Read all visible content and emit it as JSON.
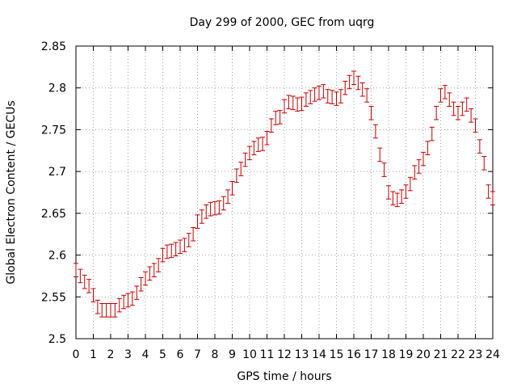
{
  "chart_data": {
    "type": "scatter",
    "title": "Day 299 of 2000, GEC from uqrg",
    "xlabel": "GPS time / hours",
    "ylabel": "Global Electron Content / GECUs",
    "xlim": [
      0,
      24
    ],
    "ylim": [
      2.5,
      2.85
    ],
    "xticks": [
      "0",
      "1",
      "2",
      "3",
      "4",
      "5",
      "6",
      "7",
      "8",
      "9",
      "10",
      "11",
      "12",
      "13",
      "14",
      "15",
      "16",
      "17",
      "18",
      "19",
      "20",
      "21",
      "22",
      "23",
      "24"
    ],
    "yticks": [
      "2.5",
      "2.55",
      "2.6",
      "2.65",
      "2.7",
      "2.75",
      "2.8",
      "2.85"
    ],
    "grid": true,
    "color": "#c00000",
    "error": 0.008,
    "series": [
      {
        "x": [
          0.0,
          0.25,
          0.5,
          0.75,
          1.0,
          1.25,
          1.5,
          1.75,
          2.0,
          2.25,
          2.5,
          2.75,
          3.0,
          3.25,
          3.5,
          3.75,
          4.0,
          4.25,
          4.5,
          4.75,
          5.0,
          5.25,
          5.5,
          5.75,
          6.0,
          6.25,
          6.5,
          6.75,
          7.0,
          7.25,
          7.5,
          7.75,
          8.0,
          8.25,
          8.5,
          8.75,
          9.0,
          9.25,
          9.5,
          9.75,
          10.0,
          10.25,
          10.5,
          10.75,
          11.0,
          11.25,
          11.5,
          11.75,
          12.0,
          12.25,
          12.5,
          12.75,
          13.0,
          13.25,
          13.5,
          13.75,
          14.0,
          14.25,
          14.5,
          14.75,
          15.0,
          15.25,
          15.5,
          15.75,
          16.0,
          16.25,
          16.5,
          16.75,
          17.0,
          17.25,
          17.5,
          17.75,
          18.0,
          18.25,
          18.5,
          18.75,
          19.0,
          19.25,
          19.5,
          19.75,
          20.0,
          20.25,
          20.5,
          20.75,
          21.0,
          21.25,
          21.5,
          21.75,
          22.0,
          22.25,
          22.5,
          22.75,
          23.0,
          23.25,
          23.5,
          23.75,
          24.0
        ],
        "y": [
          2.582,
          2.575,
          2.568,
          2.563,
          2.552,
          2.538,
          2.534,
          2.534,
          2.534,
          2.534,
          2.54,
          2.544,
          2.546,
          2.548,
          2.555,
          2.565,
          2.572,
          2.578,
          2.582,
          2.588,
          2.6,
          2.604,
          2.605,
          2.607,
          2.61,
          2.612,
          2.618,
          2.625,
          2.64,
          2.646,
          2.652,
          2.655,
          2.656,
          2.657,
          2.662,
          2.67,
          2.68,
          2.695,
          2.703,
          2.714,
          2.722,
          2.728,
          2.732,
          2.733,
          2.74,
          2.755,
          2.764,
          2.765,
          2.778,
          2.783,
          2.782,
          2.78,
          2.781,
          2.786,
          2.789,
          2.792,
          2.794,
          2.796,
          2.79,
          2.789,
          2.787,
          2.79,
          2.8,
          2.807,
          2.812,
          2.806,
          2.798,
          2.791,
          2.77,
          2.748,
          2.72,
          2.702,
          2.675,
          2.668,
          2.666,
          2.67,
          2.676,
          2.685,
          2.699,
          2.706,
          2.715,
          2.728,
          2.745,
          2.77,
          2.791,
          2.795,
          2.786,
          2.775,
          2.77,
          2.775,
          2.78,
          2.767,
          2.755,
          2.73,
          2.71,
          2.676,
          2.668
        ]
      }
    ]
  }
}
